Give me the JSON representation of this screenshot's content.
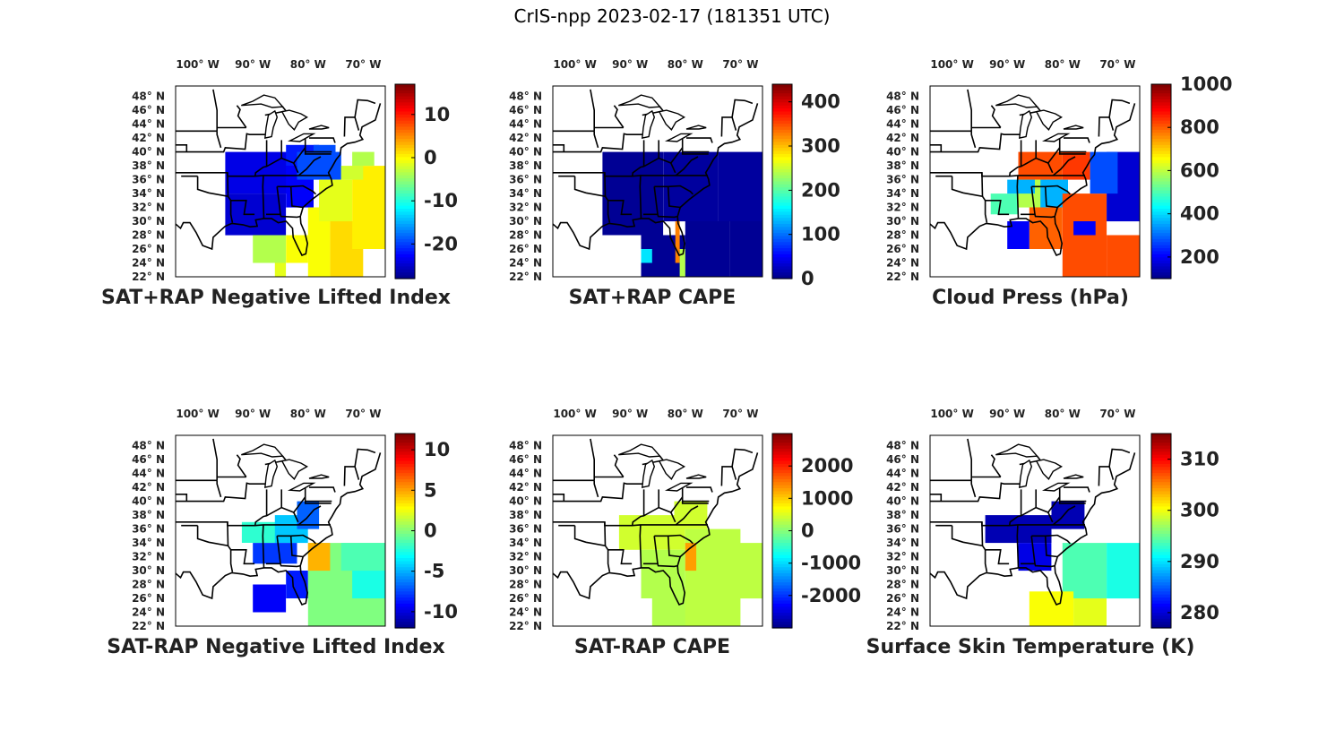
{
  "figure": {
    "title": "CrIS-npp 2023-02-17 (181351 UTC)"
  },
  "axes": {
    "lon_labels": [
      "100",
      "90",
      "80",
      "70"
    ],
    "lon_values": [
      -100,
      -90,
      -80,
      -70
    ],
    "lon_suffix": "W",
    "lat_labels": [
      "48",
      "46",
      "44",
      "42",
      "40",
      "38",
      "36",
      "34",
      "32",
      "30",
      "28",
      "26",
      "24",
      "22"
    ],
    "lat_values": [
      48,
      46,
      44,
      42,
      40,
      38,
      36,
      34,
      32,
      30,
      28,
      26,
      24,
      22
    ],
    "lat_suffix": "N",
    "degree_symbol": "°",
    "lon_range": [
      -104,
      -66
    ],
    "lat_range": [
      22,
      49.5
    ]
  },
  "colormap": "jet",
  "panels": [
    {
      "id": "sat-rap-plus-lifted-index",
      "title": "SAT+RAP Negative Lifted Index",
      "colorbar": {
        "ticks": [
          "10",
          "0",
          "-10",
          "-20"
        ],
        "tick_values": [
          10,
          0,
          -10,
          -20
        ],
        "range": [
          -28,
          17
        ]
      }
    },
    {
      "id": "sat-rap-plus-cape",
      "title": "SAT+RAP CAPE",
      "colorbar": {
        "ticks": [
          "400",
          "300",
          "200",
          "100",
          "0"
        ],
        "tick_values": [
          400,
          300,
          200,
          100,
          0
        ],
        "range": [
          0,
          440
        ]
      }
    },
    {
      "id": "cloud-press",
      "title": "Cloud Press (hPa)",
      "colorbar": {
        "ticks": [
          "1000",
          "800",
          "600",
          "400",
          "200"
        ],
        "tick_values": [
          1000,
          800,
          600,
          400,
          200
        ],
        "range": [
          100,
          1000
        ]
      }
    },
    {
      "id": "sat-minus-rap-lifted-index",
      "title": "SAT-RAP Negative Lifted Index",
      "colorbar": {
        "ticks": [
          "10",
          "5",
          "0",
          "-5",
          "-10"
        ],
        "tick_values": [
          10,
          5,
          0,
          -5,
          -10
        ],
        "range": [
          -12,
          12
        ]
      }
    },
    {
      "id": "sat-minus-rap-cape",
      "title": "SAT-RAP CAPE",
      "colorbar": {
        "ticks": [
          "2000",
          "1000",
          "0",
          "-1000",
          "-2000"
        ],
        "tick_values": [
          2000,
          1000,
          0,
          -1000,
          -2000
        ],
        "range": [
          -3000,
          3000
        ]
      }
    },
    {
      "id": "surface-skin-temperature",
      "title": "Surface Skin Temperature (K)",
      "colorbar": {
        "ticks": [
          "310",
          "300",
          "290",
          "280"
        ],
        "tick_values": [
          310,
          300,
          290,
          280
        ],
        "range": [
          277,
          315
        ]
      }
    }
  ]
}
